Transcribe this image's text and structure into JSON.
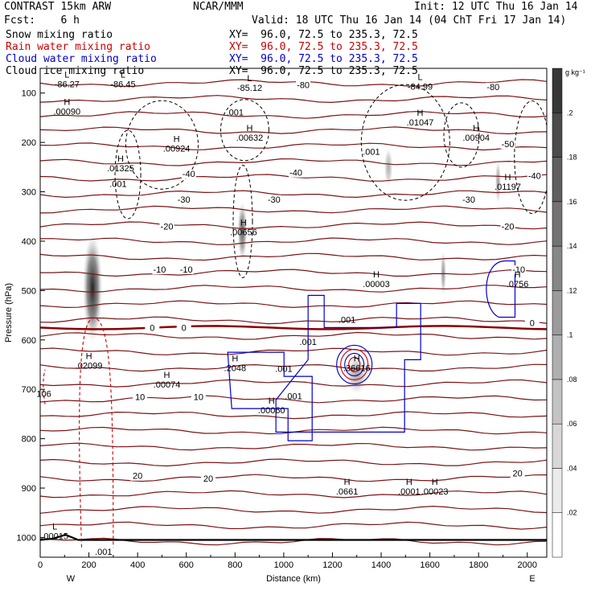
{
  "header": {
    "model": "CONTRAST 15km ARW",
    "org": "NCAR/MMM",
    "init": "Init: 12 UTC Thu 16 Jan 14",
    "fcst": "Fcst:    6 h",
    "valid": "Valid: 18 UTC Thu 16 Jan 14 (04 ChT Fri 17 Jan 14)"
  },
  "fields": [
    {
      "label": "Snow mixing ratio",
      "xy": "XY=  96.0, 72.5 to 235.3, 72.5",
      "color": "#000000"
    },
    {
      "label": "Rain water mixing ratio",
      "xy": "XY=  96.0, 72.5 to 235.3, 72.5",
      "color": "#cc0000"
    },
    {
      "label": "Cloud water mixing ratio",
      "xy": "XY=  96.0, 72.5 to 235.3, 72.5",
      "color": "#0000cc"
    },
    {
      "label": "Cloud ice mixing ratio",
      "xy": "XY=  96.0, 72.5 to 235.3, 72.5",
      "color": "#000000"
    }
  ],
  "chart_data": {
    "type": "cross-section contour",
    "xlabel": "Distance (km)",
    "ylabel": "Pressure (hPa)",
    "xlim": [
      0,
      2080
    ],
    "ylim": [
      1040,
      50
    ],
    "x_ticks": [
      0,
      200,
      400,
      600,
      800,
      1000,
      1200,
      1400,
      1600,
      1800,
      2000
    ],
    "y_ticks": [
      100,
      200,
      300,
      400,
      500,
      600,
      700,
      800,
      900,
      1000
    ],
    "endpoints": {
      "left": "W",
      "right": "E"
    },
    "colorbar": {
      "unit": "g kg⁻¹",
      "levels": [
        0.02,
        0.04,
        0.06,
        0.08,
        0.1,
        0.12,
        0.14,
        0.16,
        0.18,
        0.2
      ],
      "labels": [
        ".02",
        ".04",
        ".06",
        ".08",
        ".1",
        ".12",
        ".14",
        ".16",
        ".18",
        ".2"
      ]
    },
    "temperature_labels": [
      {
        "text": "-80",
        "x": 1080,
        "p": 88
      },
      {
        "text": "-80",
        "x": 1860,
        "p": 92
      },
      {
        "text": "-50",
        "x": 1920,
        "p": 208
      },
      {
        "text": "-40",
        "x": 2030,
        "p": 272
      },
      {
        "text": "-40",
        "x": 610,
        "p": 268
      },
      {
        "text": "-40",
        "x": 1050,
        "p": 266
      },
      {
        "text": "-30",
        "x": 590,
        "p": 320
      },
      {
        "text": "-30",
        "x": 960,
        "p": 320
      },
      {
        "text": "-30",
        "x": 1760,
        "p": 320
      },
      {
        "text": "-20",
        "x": 520,
        "p": 375
      },
      {
        "text": "-20",
        "x": 1920,
        "p": 375
      },
      {
        "text": "-10",
        "x": 490,
        "p": 462
      },
      {
        "text": "-10",
        "x": 600,
        "p": 462
      },
      {
        "text": "-10",
        "x": 1965,
        "p": 462
      },
      {
        "text": "0",
        "x": 460,
        "p": 580
      },
      {
        "text": "0",
        "x": 590,
        "p": 580
      },
      {
        "text": "0",
        "x": 2020,
        "p": 570
      },
      {
        "text": "10",
        "x": 410,
        "p": 720
      },
      {
        "text": "10",
        "x": 650,
        "p": 720
      },
      {
        "text": "20",
        "x": 400,
        "p": 880
      },
      {
        "text": "20",
        "x": 690,
        "p": 885
      },
      {
        "text": "20",
        "x": 1960,
        "p": 875
      }
    ],
    "extrema": [
      {
        "mark": "L",
        "value": "-86.27",
        "x": 110,
        "p": 85,
        "color": "#8b0000"
      },
      {
        "mark": "L",
        "value": "-86.45",
        "x": 340,
        "p": 85,
        "color": "#8b0000"
      },
      {
        "mark": "L",
        "value": "-85.12",
        "x": 860,
        "p": 92,
        "color": "#8b0000"
      },
      {
        "mark": "L",
        "value": "-84.99",
        "x": 1560,
        "p": 90,
        "color": "#8b0000"
      },
      {
        "mark": "H",
        "value": ".00090",
        "x": 110,
        "p": 140,
        "color": "#000000"
      },
      {
        "mark": "H",
        "value": ".01325",
        "x": 330,
        "p": 255,
        "color": "#000000"
      },
      {
        "mark": "H",
        "value": ".00924",
        "x": 560,
        "p": 215,
        "color": "#000000"
      },
      {
        "mark": "H",
        "value": ".00632",
        "x": 860,
        "p": 193,
        "color": "#000000"
      },
      {
        "mark": "H",
        "value": ".00656",
        "x": 835,
        "p": 385,
        "color": "#000000"
      },
      {
        "mark": "H",
        "value": ".00003",
        "x": 1380,
        "p": 490,
        "color": "#000000"
      },
      {
        "mark": "H",
        "value": ".01047",
        "x": 1560,
        "p": 162,
        "color": "#000000"
      },
      {
        "mark": "H",
        "value": ".00904",
        "x": 1790,
        "p": 193,
        "color": "#000000"
      },
      {
        "mark": "H",
        "value": ".01197",
        "x": 1920,
        "p": 293,
        "color": "#000000"
      },
      {
        "mark": "H",
        "value": ".02099",
        "x": 200,
        "p": 655,
        "color": "#cc0000"
      },
      {
        "mark": "H",
        "value": ".00074",
        "x": 520,
        "p": 693,
        "color": "#cc0000"
      },
      {
        "mark": "H",
        "value": ".00060",
        "x": 950,
        "p": 745,
        "color": "#cc0000"
      },
      {
        "mark": "L",
        "value": ".00015",
        "x": 60,
        "p": 1000,
        "color": "#cc0000"
      },
      {
        "mark": "H",
        "value": ".00023",
        "x": 1620,
        "p": 910,
        "color": "#cc0000"
      },
      {
        "mark": "H",
        "value": ".2048",
        "x": 800,
        "p": 660,
        "color": "#0000cc"
      },
      {
        "mark": "H",
        "value": ".0661",
        "x": 1260,
        "p": 910,
        "color": "#0000cc"
      },
      {
        "mark": "H",
        "value": ".0001",
        "x": 1515,
        "p": 910,
        "color": "#0000cc"
      },
      {
        "mark": "H",
        "value": ".0756",
        "x": 1960,
        "p": 490,
        "color": "#0000cc"
      },
      {
        "mark": "H",
        "value": ".36616",
        "x": 1300,
        "p": 660,
        "color": "#cc0000"
      }
    ],
    "contour_value_labels": [
      {
        "text": ".001",
        "x": 800,
        "p": 145,
        "color": "#000000"
      },
      {
        "text": ".001",
        "x": 320,
        "p": 290,
        "color": "#000000"
      },
      {
        "text": ".001",
        "x": 1360,
        "p": 225,
        "color": "#000000"
      },
      {
        "text": ".001",
        "x": 260,
        "p": 1035,
        "color": "#cc0000"
      },
      {
        "text": "106",
        "x": 15,
        "p": 715,
        "color": "#cc0000"
      },
      {
        "text": ".001",
        "x": 1100,
        "p": 610,
        "color": "#0000cc"
      },
      {
        "text": ".001",
        "x": 1260,
        "p": 565,
        "color": "#0000cc"
      },
      {
        "text": ".001",
        "x": 1000,
        "p": 665,
        "color": "#0000cc"
      },
      {
        "text": ".001",
        "x": 1040,
        "p": 720,
        "color": "#0000cc"
      }
    ],
    "snow_shading": [
      {
        "x": 215,
        "p": 495,
        "rx": 40,
        "rp": 110,
        "max": 0.2
      },
      {
        "x": 830,
        "p": 380,
        "rx": 20,
        "rp": 60,
        "max": 0.12
      },
      {
        "x": 1655,
        "p": 465,
        "rx": 12,
        "rp": 45,
        "max": 0.06
      },
      {
        "x": 1880,
        "p": 280,
        "rx": 12,
        "rp": 45,
        "max": 0.05
      },
      {
        "x": 1430,
        "p": 250,
        "rx": 18,
        "rp": 40,
        "max": 0.03
      },
      {
        "x": 1300,
        "p": 670,
        "rx": 45,
        "rp": 40,
        "max": 0.04
      }
    ]
  }
}
